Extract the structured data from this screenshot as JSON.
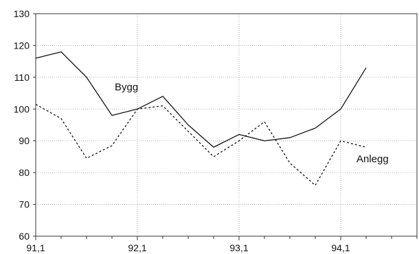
{
  "chart_data": {
    "type": "line",
    "title": "",
    "xlabel": "",
    "ylabel": "",
    "x_tick_labels": [
      "91,1",
      "92,1",
      "93,1",
      "94,1"
    ],
    "y_ticks": [
      60,
      70,
      80,
      90,
      100,
      110,
      120,
      130
    ],
    "ylim": [
      60,
      130
    ],
    "xlim": [
      0,
      15
    ],
    "grid": "dotted",
    "series": [
      {
        "name": "Bygg",
        "style": "solid",
        "color": "#111111",
        "values": [
          116,
          118,
          110,
          98,
          100,
          104,
          95,
          88,
          92,
          90,
          91,
          94,
          100,
          113
        ]
      },
      {
        "name": "Anlegg",
        "style": "dashed",
        "color": "#111111",
        "values": [
          101.5,
          97,
          84.5,
          88.5,
          100,
          101,
          93,
          85,
          90,
          96,
          83,
          76,
          90,
          88
        ]
      }
    ]
  }
}
